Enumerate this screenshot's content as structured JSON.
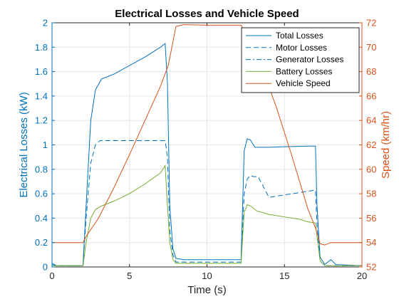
{
  "chart_data": {
    "type": "line",
    "title": "Electrical Losses and Vehicle Speed",
    "xlabel": "Time (s)",
    "ylabel_left": "Electrical Losses (kW)",
    "ylabel_right": "Speed (km/hr)",
    "xlim": [
      0,
      20
    ],
    "ylim_left": [
      0,
      2
    ],
    "ylim_right": [
      52,
      72
    ],
    "x_ticks": [
      "0",
      "5",
      "10",
      "15",
      "20"
    ],
    "y_left_ticks": [
      "0",
      "0.2",
      "0.4",
      "0.6",
      "0.8",
      "1",
      "1.2",
      "1.4",
      "1.6",
      "1.8",
      "2"
    ],
    "y_right_ticks": [
      "52",
      "54",
      "56",
      "58",
      "60",
      "62",
      "64",
      "66",
      "68",
      "70",
      "72"
    ],
    "grid": true,
    "legend_position": "top-right",
    "colors": {
      "left_axis": "#0072bd",
      "right_axis": "#d95319",
      "total": "#0072bd",
      "motor": "#0072bd",
      "generator": "#0072bd",
      "battery": "#77ac30",
      "speed": "#d95319"
    },
    "series": [
      {
        "name": "Total Losses",
        "axis": "left",
        "color": "#0072bd",
        "dash": "solid",
        "points": [
          [
            0,
            0.03
          ],
          [
            0.3,
            0.01
          ],
          [
            2.0,
            0.01
          ],
          [
            2.2,
            0.5
          ],
          [
            2.5,
            1.2
          ],
          [
            2.8,
            1.45
          ],
          [
            3.2,
            1.54
          ],
          [
            4.0,
            1.58
          ],
          [
            5.0,
            1.65
          ],
          [
            6.0,
            1.72
          ],
          [
            7.0,
            1.8
          ],
          [
            7.3,
            1.83
          ],
          [
            7.45,
            1.5
          ],
          [
            7.6,
            0.5
          ],
          [
            7.8,
            0.15
          ],
          [
            8.0,
            0.07
          ],
          [
            8.5,
            0.06
          ],
          [
            12.0,
            0.06
          ],
          [
            12.2,
            0.06
          ],
          [
            12.4,
            0.95
          ],
          [
            12.6,
            1.05
          ],
          [
            12.8,
            1.04
          ],
          [
            13.1,
            0.98
          ],
          [
            14.0,
            0.98
          ],
          [
            15.0,
            0.985
          ],
          [
            16.5,
            0.99
          ],
          [
            17.0,
            0.99
          ],
          [
            17.1,
            0.5
          ],
          [
            17.3,
            0.08
          ],
          [
            17.6,
            0.02
          ],
          [
            18.0,
            0.06
          ],
          [
            18.3,
            0.02
          ],
          [
            20.0,
            0.01
          ]
        ]
      },
      {
        "name": "Motor Losses",
        "axis": "left",
        "color": "#0072bd",
        "dash": "dashed",
        "points": [
          [
            0,
            0.02
          ],
          [
            0.3,
            0.01
          ],
          [
            2.0,
            0.01
          ],
          [
            2.2,
            0.4
          ],
          [
            2.5,
            0.85
          ],
          [
            2.8,
            1.0
          ],
          [
            3.1,
            1.035
          ],
          [
            5.0,
            1.035
          ],
          [
            7.0,
            1.035
          ],
          [
            7.3,
            1.035
          ],
          [
            7.45,
            0.9
          ],
          [
            7.6,
            0.3
          ],
          [
            7.8,
            0.1
          ],
          [
            8.0,
            0.04
          ],
          [
            12.0,
            0.04
          ],
          [
            12.2,
            0.04
          ],
          [
            12.4,
            0.6
          ],
          [
            12.6,
            0.72
          ],
          [
            12.8,
            0.75
          ],
          [
            13.0,
            0.74
          ],
          [
            13.3,
            0.74
          ],
          [
            14.0,
            0.57
          ],
          [
            15.0,
            0.59
          ],
          [
            16.0,
            0.61
          ],
          [
            17.0,
            0.63
          ],
          [
            17.1,
            0.35
          ],
          [
            17.3,
            0.05
          ],
          [
            17.6,
            0.01
          ],
          [
            20.0,
            0.01
          ]
        ]
      },
      {
        "name": "Generator Losses",
        "axis": "left",
        "color": "#0072bd",
        "dash": "dashdot",
        "points": [
          [
            0,
            0.0
          ],
          [
            20.0,
            0.0
          ]
        ]
      },
      {
        "name": "Battery Losses",
        "axis": "left",
        "color": "#77ac30",
        "dash": "solid",
        "points": [
          [
            0,
            0.01
          ],
          [
            2.0,
            0.01
          ],
          [
            2.2,
            0.2
          ],
          [
            2.5,
            0.4
          ],
          [
            2.8,
            0.47
          ],
          [
            3.2,
            0.5
          ],
          [
            4.0,
            0.54
          ],
          [
            5.0,
            0.6
          ],
          [
            6.0,
            0.68
          ],
          [
            7.0,
            0.77
          ],
          [
            7.3,
            0.83
          ],
          [
            7.45,
            0.5
          ],
          [
            7.6,
            0.2
          ],
          [
            7.8,
            0.06
          ],
          [
            8.0,
            0.03
          ],
          [
            12.0,
            0.03
          ],
          [
            12.2,
            0.03
          ],
          [
            12.4,
            0.45
          ],
          [
            12.6,
            0.51
          ],
          [
            12.8,
            0.5
          ],
          [
            13.2,
            0.46
          ],
          [
            14.0,
            0.43
          ],
          [
            15.0,
            0.41
          ],
          [
            16.0,
            0.39
          ],
          [
            16.5,
            0.37
          ],
          [
            17.0,
            0.36
          ],
          [
            17.1,
            0.25
          ],
          [
            17.3,
            0.05
          ],
          [
            17.6,
            0.01
          ],
          [
            20.0,
            0.01
          ]
        ]
      },
      {
        "name": "Vehicle Speed",
        "axis": "right",
        "color": "#d95319",
        "dash": "solid",
        "points": [
          [
            0,
            54
          ],
          [
            2.0,
            54
          ],
          [
            2.2,
            54.5
          ],
          [
            3.0,
            56.0
          ],
          [
            4.0,
            58.5
          ],
          [
            5.0,
            61.2
          ],
          [
            6.0,
            64.0
          ],
          [
            7.0,
            66.8
          ],
          [
            7.5,
            68.5
          ],
          [
            8.0,
            71.7
          ],
          [
            8.5,
            71.85
          ],
          [
            10.0,
            71.8
          ],
          [
            12.0,
            71.8
          ],
          [
            12.2,
            71.8
          ],
          [
            12.8,
            70.5
          ],
          [
            13.5,
            68.5
          ],
          [
            14.5,
            65.0
          ],
          [
            15.5,
            61.0
          ],
          [
            16.5,
            56.8
          ],
          [
            17.0,
            55.2
          ],
          [
            17.3,
            53.9
          ],
          [
            17.6,
            53.8
          ],
          [
            18.0,
            54.0
          ],
          [
            20.0,
            54.0
          ]
        ]
      }
    ]
  }
}
